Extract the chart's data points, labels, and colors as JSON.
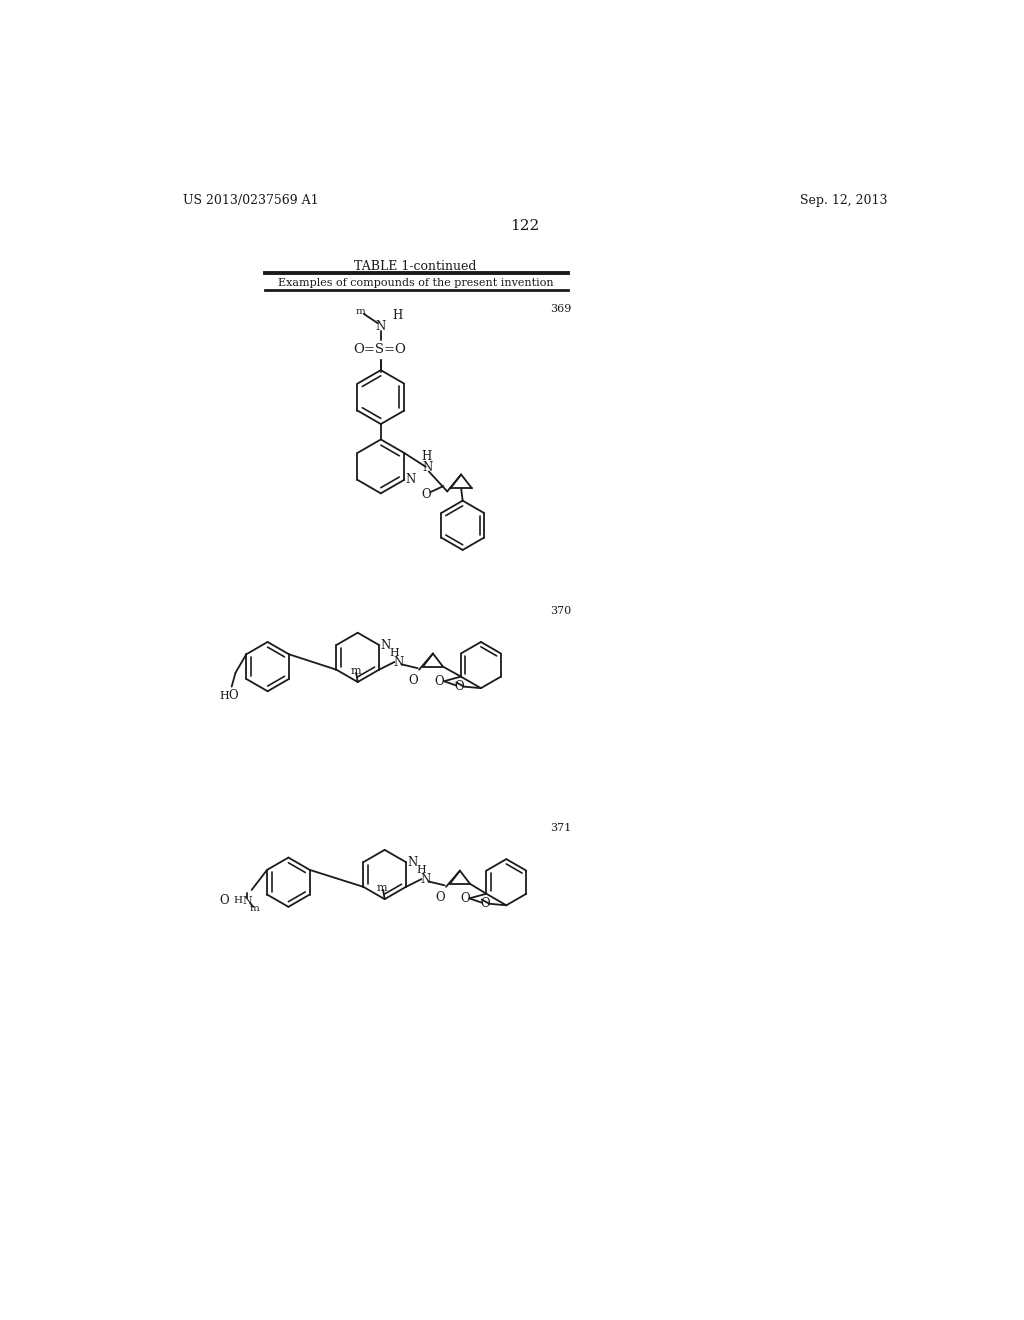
{
  "page_number": "122",
  "left_header": "US 2013/0237569 A1",
  "right_header": "Sep. 12, 2013",
  "table_title": "TABLE 1-continued",
  "table_subtitle": "Examples of compounds of the present invention",
  "background_color": "#ffffff",
  "line_color": "#1a1a1a",
  "text_color": "#1a1a1a"
}
